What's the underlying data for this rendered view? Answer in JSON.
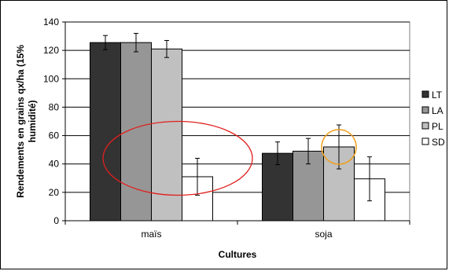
{
  "chart_data": {
    "type": "bar",
    "categories": [
      "maïs",
      "soja"
    ],
    "series": [
      {
        "name": "LT",
        "color": "#333333",
        "values": [
          125.5,
          47.5
        ],
        "errors": [
          5,
          8
        ]
      },
      {
        "name": "LA",
        "color": "#969696",
        "values": [
          125.5,
          49
        ],
        "errors": [
          6.5,
          9
        ]
      },
      {
        "name": "PL",
        "color": "#c0c0c0",
        "values": [
          121,
          52
        ],
        "errors": [
          6,
          15.5
        ]
      },
      {
        "name": "SD",
        "color": "#ffffff",
        "values": [
          31,
          29.5
        ],
        "errors": [
          13,
          15.5
        ]
      }
    ],
    "xlabel": "Cultures",
    "ylabel": "Rendements en grains qx/ha (15% humidité)",
    "ylim": [
      0,
      140
    ],
    "yticks": [
      0,
      20,
      40,
      60,
      80,
      100,
      120,
      140
    ],
    "grid": true,
    "legend_position": "right",
    "annotations": [
      {
        "shape": "ellipse",
        "color": "#e0201e",
        "category": "maïs",
        "series": "SD"
      },
      {
        "shape": "circle",
        "color": "#f0a020",
        "category": "soja",
        "series": "PL"
      }
    ]
  }
}
